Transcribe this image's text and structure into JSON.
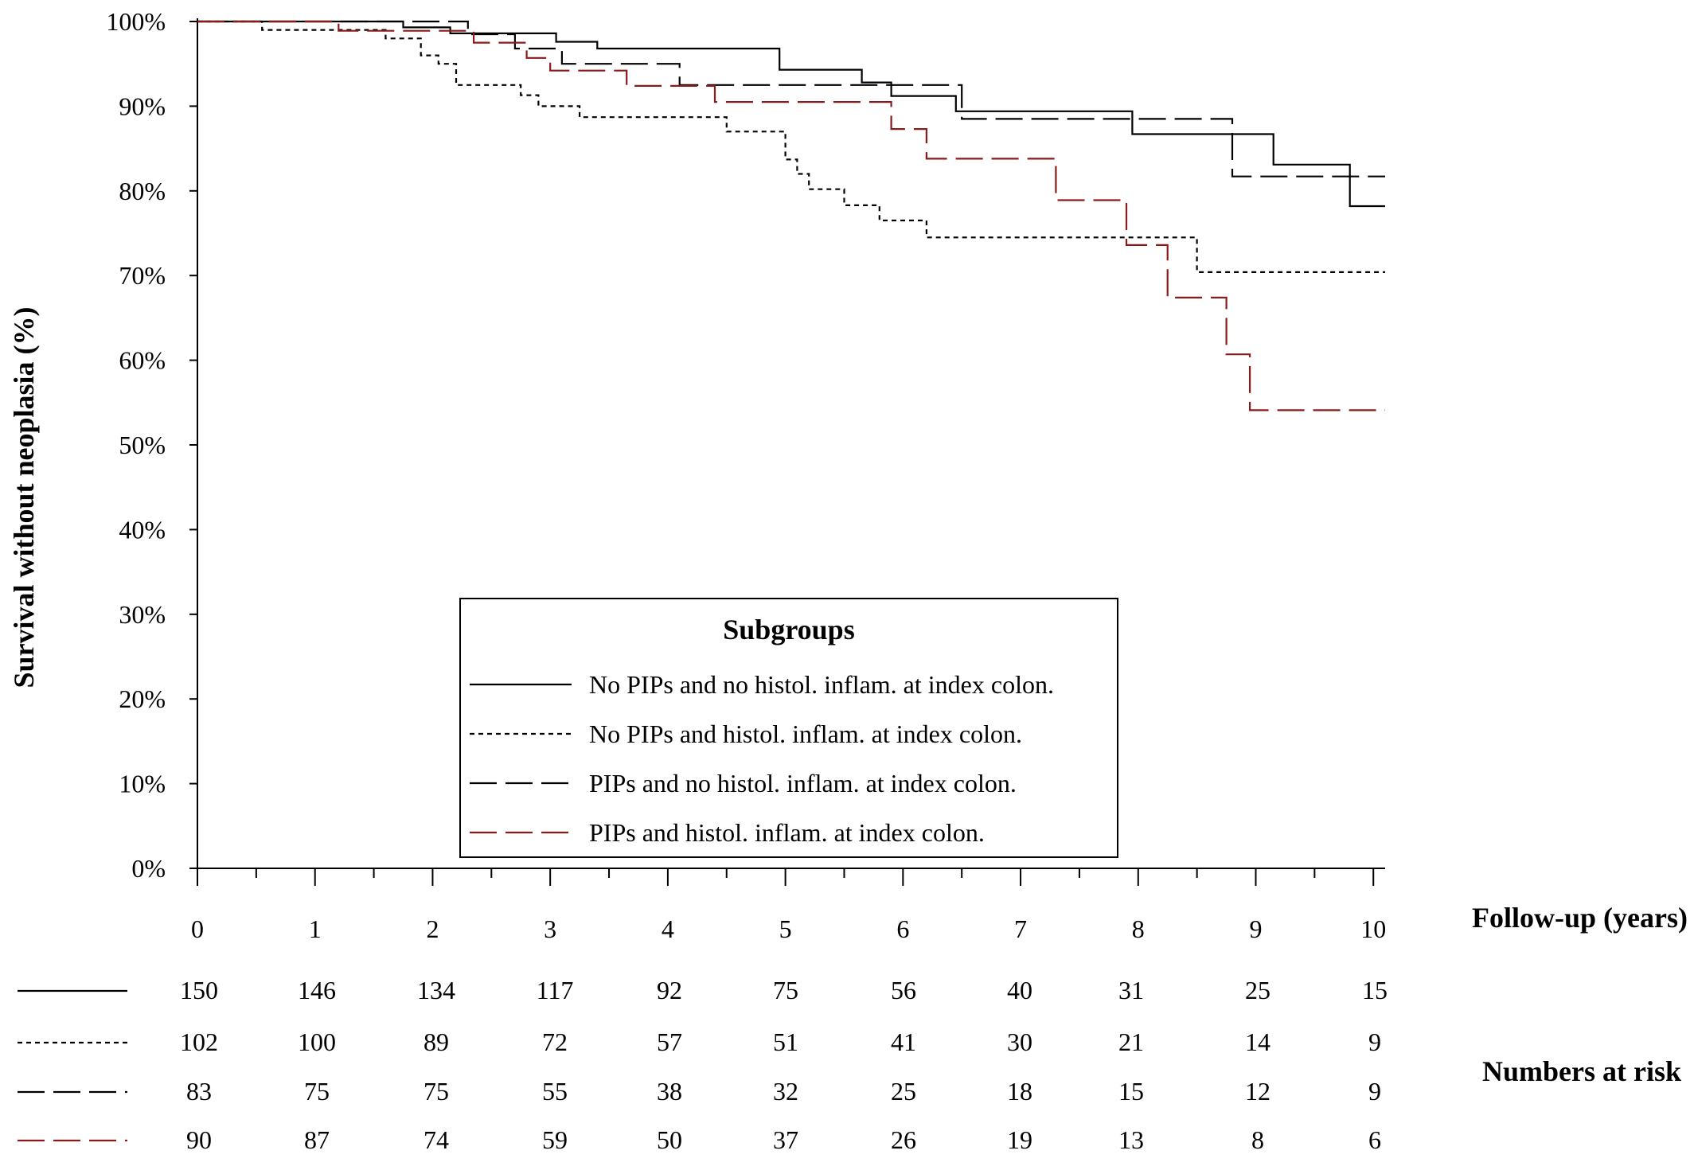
{
  "chart_data": {
    "type": "line",
    "step": true,
    "ylabel": "Survival without neoplasia (%)",
    "xlabel": "Follow-up (years)",
    "ylim": [
      0,
      100
    ],
    "xlim": [
      0,
      10
    ],
    "y_ticks": [
      0,
      10,
      20,
      30,
      40,
      50,
      60,
      70,
      80,
      90,
      100
    ],
    "y_tick_labels": [
      "0%",
      "10%",
      "20%",
      "30%",
      "40%",
      "50%",
      "60%",
      "70%",
      "80%",
      "90%",
      "100%"
    ],
    "x_ticks": [
      0,
      1,
      2,
      3,
      4,
      5,
      6,
      7,
      8,
      9,
      10
    ],
    "x_tick_labels": [
      "0",
      "1",
      "2",
      "3",
      "4",
      "5",
      "6",
      "7",
      "8",
      "9",
      "10"
    ],
    "grid": false,
    "legend": {
      "title": "Subgroups",
      "placement": "lower-center"
    },
    "series": [
      {
        "name": "No PIPs and no histol. inflam. at index colon.",
        "color": "#000000",
        "dash": "solid",
        "points": [
          [
            0,
            100
          ],
          [
            1.75,
            100
          ],
          [
            1.75,
            99.3
          ],
          [
            2.15,
            99.3
          ],
          [
            2.15,
            98.6
          ],
          [
            3.05,
            98.6
          ],
          [
            3.05,
            97.6
          ],
          [
            3.4,
            97.6
          ],
          [
            3.4,
            96.8
          ],
          [
            4.95,
            96.8
          ],
          [
            4.95,
            94.3
          ],
          [
            5.65,
            94.3
          ],
          [
            5.65,
            92.8
          ],
          [
            5.9,
            92.8
          ],
          [
            5.9,
            91.2
          ],
          [
            6.45,
            91.2
          ],
          [
            6.45,
            89.4
          ],
          [
            7.95,
            89.4
          ],
          [
            7.95,
            86.7
          ],
          [
            9.15,
            86.7
          ],
          [
            9.15,
            83.1
          ],
          [
            9.8,
            83.1
          ],
          [
            9.8,
            78.2
          ],
          [
            10.1,
            78.2
          ]
        ]
      },
      {
        "name": "No PIPs and histol. inflam. at index colon.",
        "color": "#000000",
        "dash": "short",
        "points": [
          [
            0,
            100
          ],
          [
            0.55,
            100
          ],
          [
            0.55,
            99.0
          ],
          [
            1.6,
            99.0
          ],
          [
            1.6,
            98.0
          ],
          [
            1.9,
            98.0
          ],
          [
            1.9,
            96.0
          ],
          [
            2.05,
            96.0
          ],
          [
            2.05,
            95.0
          ],
          [
            2.2,
            95.0
          ],
          [
            2.2,
            92.5
          ],
          [
            2.75,
            92.5
          ],
          [
            2.75,
            91.3
          ],
          [
            2.9,
            91.3
          ],
          [
            2.9,
            90.0
          ],
          [
            3.25,
            90.0
          ],
          [
            3.25,
            88.7
          ],
          [
            4.5,
            88.7
          ],
          [
            4.5,
            87.0
          ],
          [
            5.0,
            87.0
          ],
          [
            5.0,
            83.7
          ],
          [
            5.1,
            83.7
          ],
          [
            5.1,
            82.0
          ],
          [
            5.2,
            82.0
          ],
          [
            5.2,
            80.2
          ],
          [
            5.5,
            80.2
          ],
          [
            5.5,
            78.3
          ],
          [
            5.8,
            78.3
          ],
          [
            5.8,
            76.5
          ],
          [
            6.2,
            76.5
          ],
          [
            6.2,
            74.5
          ],
          [
            8.5,
            74.5
          ],
          [
            8.5,
            70.4
          ],
          [
            10.1,
            70.4
          ]
        ]
      },
      {
        "name": "PIPs and no histol. inflam. at index colon.",
        "color": "#000000",
        "dash": "long",
        "points": [
          [
            0,
            100
          ],
          [
            2.3,
            100
          ],
          [
            2.3,
            98.5
          ],
          [
            2.7,
            98.5
          ],
          [
            2.7,
            96.8
          ],
          [
            3.1,
            96.8
          ],
          [
            3.1,
            95.0
          ],
          [
            4.1,
            95.0
          ],
          [
            4.1,
            92.5
          ],
          [
            6.5,
            92.5
          ],
          [
            6.5,
            88.5
          ],
          [
            8.8,
            88.5
          ],
          [
            8.8,
            81.7
          ],
          [
            10.1,
            81.7
          ]
        ]
      },
      {
        "name": "PIPs and histol. inflam. at index colon.",
        "color": "#8b1a1a",
        "dash": "long",
        "points": [
          [
            0,
            100
          ],
          [
            1.2,
            100
          ],
          [
            1.2,
            98.9
          ],
          [
            2.35,
            98.9
          ],
          [
            2.35,
            97.5
          ],
          [
            2.8,
            97.5
          ],
          [
            2.8,
            95.7
          ],
          [
            3.0,
            95.7
          ],
          [
            3.0,
            94.2
          ],
          [
            3.65,
            94.2
          ],
          [
            3.65,
            92.4
          ],
          [
            4.4,
            92.4
          ],
          [
            4.4,
            90.5
          ],
          [
            5.9,
            90.5
          ],
          [
            5.9,
            87.3
          ],
          [
            6.2,
            87.3
          ],
          [
            6.2,
            83.8
          ],
          [
            7.3,
            83.8
          ],
          [
            7.3,
            78.9
          ],
          [
            7.9,
            78.9
          ],
          [
            7.9,
            73.6
          ],
          [
            8.25,
            73.6
          ],
          [
            8.25,
            67.4
          ],
          [
            8.75,
            67.4
          ],
          [
            8.75,
            60.7
          ],
          [
            8.95,
            60.7
          ],
          [
            8.95,
            54.1
          ],
          [
            10.1,
            54.1
          ]
        ]
      }
    ],
    "numbers_at_risk": {
      "title": "Numbers at risk",
      "rows": [
        {
          "values": [
            "150",
            "146",
            "134",
            "117",
            "92",
            "75",
            "56",
            "40",
            "31",
            "25",
            "15"
          ]
        },
        {
          "values": [
            "102",
            "100",
            "89",
            "72",
            "57",
            "51",
            "41",
            "30",
            "21",
            "14",
            "9"
          ]
        },
        {
          "values": [
            "83",
            "75",
            "75",
            "55",
            "38",
            "32",
            "25",
            "18",
            "15",
            "12",
            "9"
          ]
        },
        {
          "values": [
            "90",
            "87",
            "74",
            "59",
            "50",
            "37",
            "26",
            "19",
            "13",
            "8",
            "6"
          ]
        }
      ]
    }
  }
}
